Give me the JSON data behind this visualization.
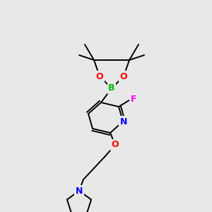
{
  "background_color": "#e8e8e8",
  "bond_color": "#000000",
  "atom_colors": {
    "B": "#00bb00",
    "O": "#ff0000",
    "N_pyridine": "#0000ff",
    "N_pyrrolidine": "#0000ff",
    "F": "#ff00ff",
    "O_ether": "#ff0000"
  },
  "lw": 1.4,
  "fontsize": 9
}
